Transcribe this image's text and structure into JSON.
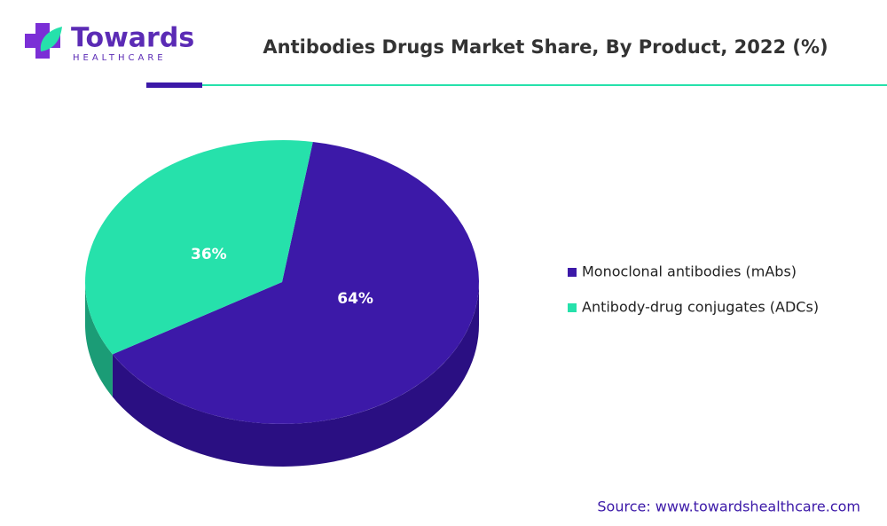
{
  "brand": {
    "name": "Towards",
    "tagline": "HEALTHCARE"
  },
  "chart_data": {
    "type": "pie3d",
    "title": "Antibodies Drugs Market Share, By Product, 2022 (%)",
    "categories": [
      "Monoclonal antibodies (mAbs)",
      "Antibody-drug conjugates (ADCs)"
    ],
    "values": [
      64,
      36
    ],
    "value_labels": [
      "64%",
      "36%"
    ],
    "colors": [
      "#3c19a8",
      "#26e1ab"
    ],
    "side_colors": [
      "#2a0f82",
      "#1b9c76"
    ]
  },
  "source": "Source: www.towardshealthcare.com"
}
